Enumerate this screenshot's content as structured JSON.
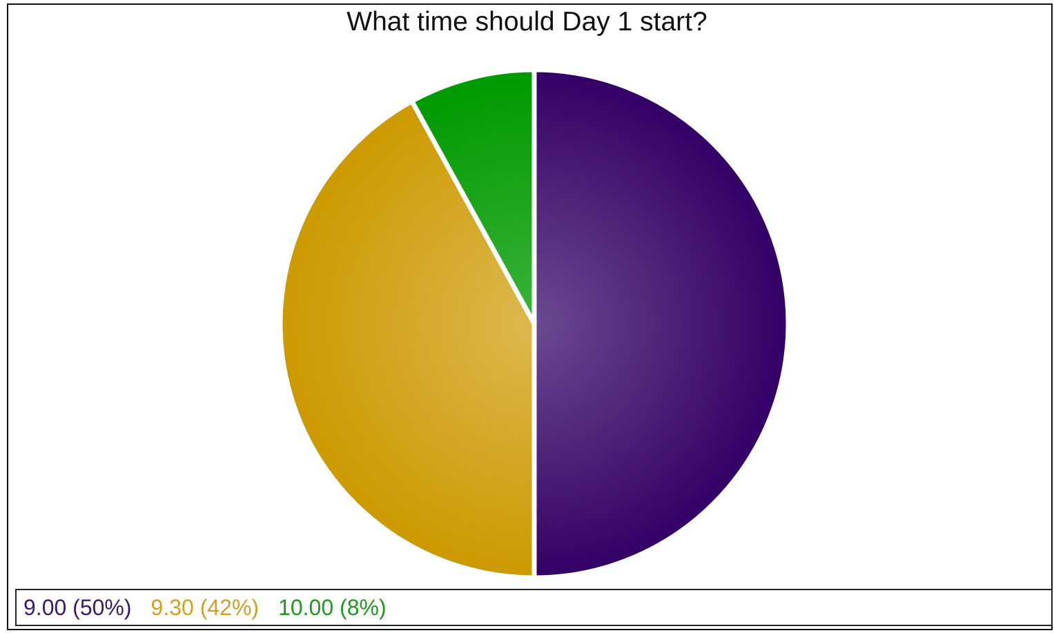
{
  "chart_data": {
    "type": "pie",
    "title": "What time should Day 1 start?",
    "slices": [
      {
        "label": "9.00 (50%)",
        "value": 50,
        "color": "#330066",
        "highlight": "#6b4a8f"
      },
      {
        "label": "9.30 (42%)",
        "value": 42,
        "color": "#cc9900",
        "highlight": "#dcb84e"
      },
      {
        "label": "10.00 (8%)",
        "value": 8,
        "color": "#009900",
        "highlight": "#3ab33a"
      }
    ],
    "legend_position": "bottom",
    "start_angle": "12 o'clock, clockwise"
  }
}
